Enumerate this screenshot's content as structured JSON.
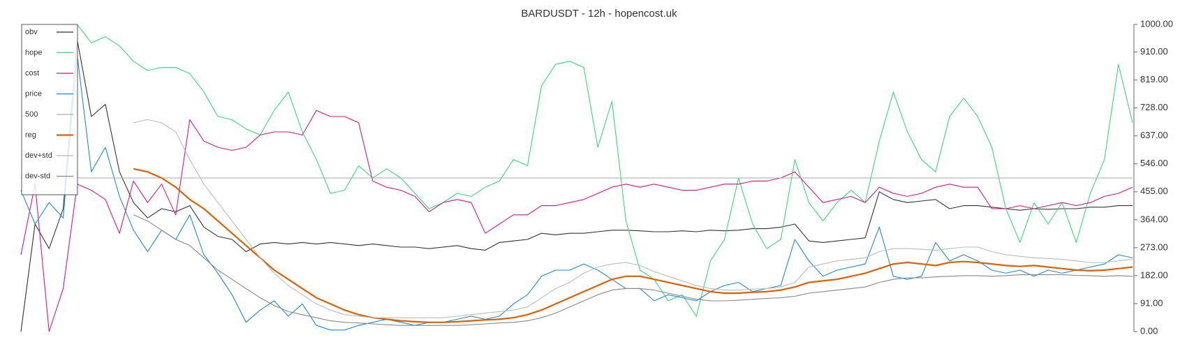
{
  "chart_data": {
    "type": "line",
    "title": "BARDUSDT - 12h - hopencost.uk",
    "ylim": [
      0,
      1000
    ],
    "yticks": [
      {
        "value": 0,
        "label": "0.00"
      },
      {
        "value": 91,
        "label": "91.00"
      },
      {
        "value": 182,
        "label": "182.00"
      },
      {
        "value": 273,
        "label": "273.00"
      },
      {
        "value": 364,
        "label": "364.00"
      },
      {
        "value": 455,
        "label": "455.00"
      },
      {
        "value": 546,
        "label": "546.00"
      },
      {
        "value": 637,
        "label": "637.00"
      },
      {
        "value": 728,
        "label": "728.00"
      },
      {
        "value": 819,
        "label": "819.00"
      },
      {
        "value": 910,
        "label": "910.00"
      },
      {
        "value": 1000,
        "label": "1000.00"
      }
    ],
    "legend": "upper left",
    "series": [
      {
        "name": "obv",
        "color": "#333333",
        "values": [
          0,
          350,
          270,
          400,
          950,
          700,
          740,
          520,
          420,
          370,
          400,
          390,
          410,
          340,
          310,
          300,
          260,
          285,
          290,
          285,
          290,
          285,
          290,
          285,
          280,
          285,
          280,
          275,
          275,
          270,
          275,
          280,
          270,
          265,
          290,
          295,
          300,
          320,
          315,
          320,
          320,
          325,
          330,
          330,
          328,
          325,
          325,
          328,
          325,
          330,
          328,
          330,
          335,
          335,
          340,
          350,
          295,
          290,
          295,
          300,
          305,
          455,
          430,
          420,
          425,
          430,
          400,
          410,
          410,
          405,
          400,
          395,
          400,
          398,
          400,
          400,
          405,
          405,
          410,
          410
        ]
      },
      {
        "name": "hope",
        "color": "#33dd77",
        "values": [
          null,
          null,
          null,
          null,
          1000,
          940,
          960,
          930,
          880,
          850,
          860,
          860,
          840,
          780,
          700,
          690,
          660,
          640,
          720,
          780,
          650,
          560,
          450,
          460,
          540,
          500,
          530,
          500,
          450,
          400,
          420,
          450,
          440,
          470,
          490,
          560,
          540,
          800,
          870,
          880,
          860,
          600,
          750,
          360,
          200,
          170,
          100,
          120,
          50,
          230,
          300,
          500,
          350,
          270,
          300,
          560,
          420,
          360,
          420,
          460,
          420,
          620,
          780,
          650,
          560,
          520,
          700,
          760,
          700,
          600,
          400,
          290,
          420,
          350,
          420,
          290,
          450,
          560,
          870,
          680
        ]
      },
      {
        "name": "cost",
        "color": "#e0167f",
        "values": [
          250,
          480,
          0,
          140,
          480,
          460,
          430,
          320,
          490,
          420,
          480,
          380,
          690,
          620,
          600,
          590,
          600,
          640,
          650,
          650,
          640,
          720,
          700,
          700,
          680,
          490,
          470,
          460,
          440,
          390,
          420,
          430,
          420,
          320,
          350,
          380,
          380,
          410,
          410,
          420,
          430,
          450,
          470,
          480,
          470,
          480,
          470,
          460,
          460,
          470,
          480,
          480,
          490,
          490,
          500,
          520,
          470,
          420,
          430,
          440,
          420,
          470,
          450,
          440,
          450,
          470,
          480,
          470,
          470,
          400,
          400,
          410,
          400,
          410,
          420,
          410,
          420,
          440,
          450,
          470
        ]
      },
      {
        "name": "price",
        "color": "#1e88e5",
        "values": [
          460,
          350,
          420,
          370,
          900,
          520,
          600,
          440,
          330,
          260,
          330,
          300,
          380,
          250,
          190,
          120,
          30,
          70,
          100,
          50,
          90,
          20,
          5,
          5,
          20,
          30,
          40,
          30,
          20,
          30,
          30,
          40,
          50,
          40,
          50,
          90,
          120,
          180,
          200,
          200,
          220,
          200,
          170,
          140,
          140,
          100,
          120,
          110,
          100,
          130,
          150,
          160,
          130,
          140,
          150,
          300,
          230,
          180,
          200,
          210,
          220,
          340,
          180,
          170,
          180,
          290,
          230,
          250,
          230,
          200,
          190,
          200,
          180,
          200,
          190,
          200,
          210,
          220,
          250,
          240
        ]
      },
      {
        "name": "500",
        "color": "#aaaaaa",
        "values": [
          500,
          500,
          500,
          500,
          500,
          500,
          500,
          500,
          500,
          500,
          500,
          500,
          500,
          500,
          500,
          500,
          500,
          500,
          500,
          500,
          500,
          500,
          500,
          500,
          500,
          500,
          500,
          500,
          500,
          500,
          500,
          500,
          500,
          500,
          500,
          500,
          500,
          500,
          500,
          500,
          500,
          500,
          500,
          500,
          500,
          500,
          500,
          500,
          500,
          500,
          500,
          500,
          500,
          500,
          500,
          500,
          500,
          500,
          500,
          500,
          500,
          500,
          500,
          500,
          500,
          500,
          500,
          500,
          500,
          500,
          500,
          500,
          500,
          500,
          500,
          500,
          500,
          500,
          500,
          500
        ]
      },
      {
        "name": "reg",
        "color": "#e06000",
        "values": [
          null,
          null,
          null,
          null,
          null,
          null,
          null,
          null,
          530,
          520,
          500,
          470,
          430,
          400,
          360,
          320,
          280,
          240,
          200,
          170,
          140,
          110,
          90,
          70,
          55,
          45,
          40,
          35,
          32,
          30,
          30,
          32,
          35,
          38,
          40,
          45,
          55,
          70,
          90,
          110,
          130,
          150,
          170,
          180,
          180,
          170,
          160,
          150,
          140,
          130,
          125,
          125,
          128,
          130,
          135,
          145,
          160,
          165,
          170,
          180,
          190,
          205,
          220,
          225,
          220,
          215,
          225,
          228,
          225,
          220,
          215,
          212,
          215,
          210,
          205,
          200,
          198,
          200,
          205,
          210
        ]
      },
      {
        "name": "dev+std",
        "color": "#bbbbbb",
        "values": [
          null,
          null,
          null,
          null,
          null,
          null,
          null,
          null,
          680,
          690,
          680,
          650,
          560,
          480,
          420,
          360,
          300,
          240,
          190,
          150,
          120,
          90,
          70,
          55,
          50,
          45,
          45,
          45,
          45,
          45,
          45,
          50,
          55,
          60,
          65,
          70,
          80,
          110,
          140,
          160,
          190,
          210,
          220,
          225,
          215,
          195,
          180,
          165,
          150,
          140,
          135,
          135,
          138,
          140,
          145,
          160,
          210,
          220,
          230,
          235,
          240,
          260,
          270,
          270,
          268,
          265,
          270,
          275,
          275,
          260,
          250,
          245,
          240,
          238,
          235,
          230,
          225,
          225,
          230,
          235
        ]
      },
      {
        "name": "dev-std",
        "color": "#888888",
        "values": [
          null,
          null,
          null,
          null,
          null,
          null,
          null,
          null,
          380,
          360,
          330,
          300,
          280,
          240,
          200,
          170,
          140,
          110,
          85,
          65,
          55,
          45,
          35,
          30,
          28,
          25,
          22,
          20,
          20,
          20,
          20,
          20,
          22,
          25,
          28,
          30,
          35,
          45,
          60,
          80,
          100,
          120,
          135,
          140,
          140,
          135,
          125,
          115,
          105,
          100,
          100,
          102,
          105,
          108,
          110,
          115,
          125,
          130,
          135,
          140,
          145,
          160,
          170,
          175,
          175,
          178,
          180,
          182,
          182,
          180,
          182,
          185,
          185,
          185,
          185,
          183,
          182,
          180,
          182,
          180
        ]
      }
    ]
  }
}
